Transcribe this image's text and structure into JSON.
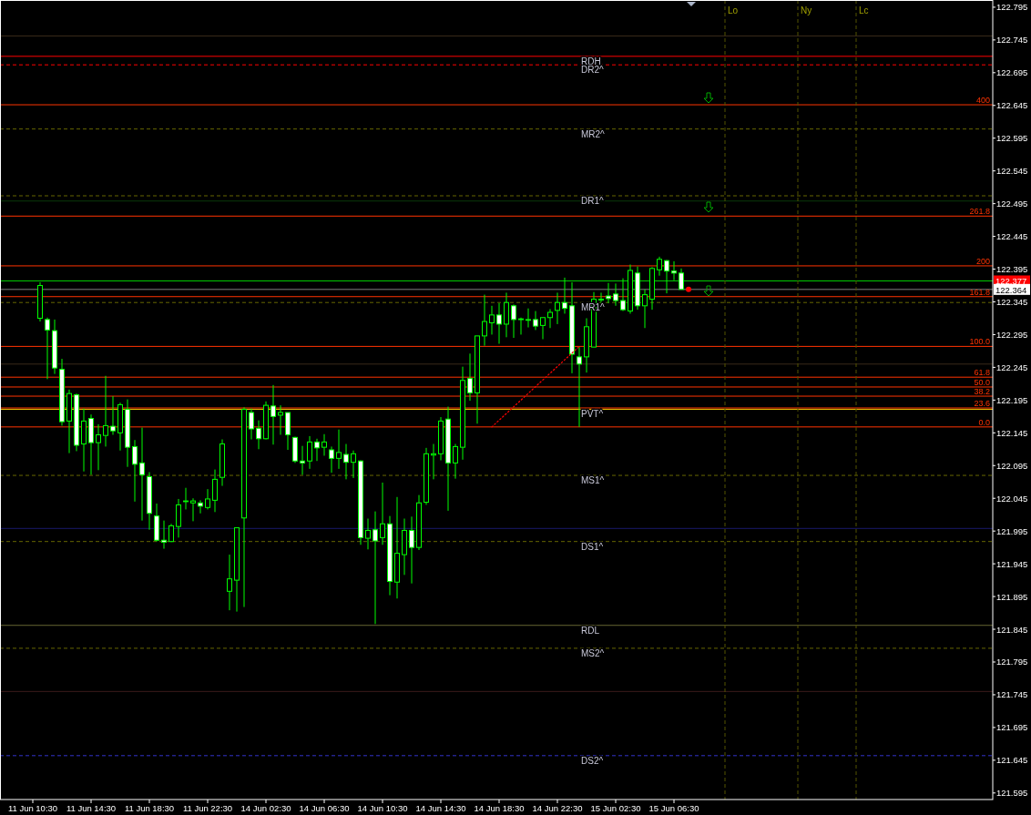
{
  "chart_data": {
    "type": "candlestick",
    "categories": [
      "11 Jun 10:30",
      null,
      null,
      null,
      null,
      null,
      null,
      null,
      "11 Jun 14:30",
      null,
      null,
      null,
      null,
      null,
      null,
      null,
      "11 Jun 18:30",
      null,
      null,
      null,
      null,
      null,
      null,
      null,
      "11 Jun 22:30",
      null,
      null,
      null,
      null,
      null,
      null,
      null,
      "14 Jun 02:30",
      null,
      null,
      null,
      null,
      null,
      null,
      null,
      "14 Jun 06:30",
      null,
      null,
      null,
      null,
      null,
      null,
      null,
      "14 Jun 10:30",
      null,
      null,
      null,
      null,
      null,
      null,
      null,
      "14 Jun 14:30",
      null,
      null,
      null,
      null,
      null,
      null,
      null,
      "14 Jun 18:30",
      null,
      null,
      null,
      null,
      null,
      null,
      null,
      "14 Jun 22:30",
      null,
      null,
      null,
      null,
      null,
      null,
      null,
      "15 Jun 02:30",
      null,
      null,
      null,
      null,
      null,
      null,
      null,
      "15 Jun 06:30",
      null,
      null,
      null,
      null,
      null,
      null,
      null,
      null,
      null,
      null,
      null,
      null,
      null,
      null,
      null,
      null,
      null,
      null,
      null,
      null,
      null,
      null,
      null,
      null,
      null,
      null,
      null,
      null,
      null,
      null,
      null,
      null,
      null,
      null,
      null,
      null,
      null,
      null,
      null,
      null,
      null,
      null,
      null
    ],
    "ylim": [
      121.585,
      122.806
    ],
    "yticks": [
      121.595,
      121.645,
      121.695,
      121.745,
      121.795,
      121.845,
      121.895,
      121.945,
      121.995,
      122.045,
      122.095,
      122.145,
      122.195,
      122.245,
      122.295,
      122.345,
      122.395,
      122.445,
      122.495,
      122.545,
      122.595,
      122.645,
      122.695,
      122.745,
      122.795
    ],
    "series": [
      {
        "type": "candlestick",
        "color": "#00ff00",
        "ohlc": [
          null,
          [
            122.32,
            122.375,
            122.315,
            122.37
          ],
          [
            122.318,
            122.321,
            122.227,
            122.302
          ],
          [
            122.301,
            122.318,
            122.235,
            122.244
          ],
          [
            122.242,
            122.258,
            122.156,
            122.162
          ],
          [
            122.163,
            122.211,
            122.114,
            122.205
          ],
          [
            122.203,
            122.205,
            122.117,
            122.126
          ],
          [
            122.128,
            122.182,
            122.086,
            122.163
          ],
          [
            122.167,
            122.173,
            122.081,
            122.13
          ],
          [
            122.13,
            122.158,
            122.088,
            122.142
          ],
          [
            122.141,
            122.232,
            122.124,
            122.156
          ],
          [
            122.155,
            122.201,
            122.142,
            122.148
          ],
          [
            122.145,
            122.191,
            122.118,
            122.188
          ],
          [
            122.181,
            122.196,
            122.093,
            122.123
          ],
          [
            122.124,
            122.134,
            122.04,
            122.097
          ],
          [
            122.099,
            122.153,
            122.011,
            122.081
          ],
          [
            122.078,
            122.085,
            121.997,
            122.022
          ],
          [
            122.018,
            122.037,
            121.979,
            121.981
          ],
          [
            121.981,
            122.011,
            121.968,
            121.978
          ],
          [
            121.979,
            122.006,
            121.978,
            122.003
          ],
          [
            122.002,
            122.044,
            121.985,
            122.035
          ],
          [
            122.041,
            122.061,
            122.028,
            122.041
          ],
          [
            122.038,
            122.045,
            122.01,
            122.041
          ],
          [
            122.038,
            122.042,
            122.022,
            122.033
          ],
          [
            122.031,
            122.059,
            122.028,
            122.044
          ],
          [
            122.042,
            122.089,
            122.024,
            122.074
          ],
          [
            122.077,
            122.135,
            122.064,
            122.128
          ],
          [
            121.903,
            121.959,
            121.874,
            121.922
          ],
          [
            121.92,
            122.0,
            121.872,
            122.0
          ],
          [
            122.015,
            122.184,
            121.879,
            122.181
          ],
          [
            122.176,
            122.182,
            122.135,
            122.151
          ],
          [
            122.152,
            122.164,
            122.12,
            122.136
          ],
          [
            122.136,
            122.193,
            122.135,
            122.187
          ],
          [
            122.186,
            122.218,
            122.127,
            122.17
          ],
          [
            122.172,
            122.187,
            122.142,
            122.176
          ],
          [
            122.176,
            122.176,
            122.119,
            122.142
          ],
          [
            122.138,
            122.139,
            122.099,
            122.102
          ],
          [
            122.102,
            122.125,
            122.081,
            122.099
          ],
          [
            122.102,
            122.14,
            122.09,
            122.131
          ],
          [
            122.131,
            122.136,
            122.102,
            122.122
          ],
          [
            122.123,
            122.143,
            122.11,
            122.131
          ],
          [
            122.119,
            122.124,
            122.084,
            122.106
          ],
          [
            122.106,
            122.15,
            122.09,
            122.115
          ],
          [
            122.112,
            122.128,
            122.074,
            122.1
          ],
          [
            122.1,
            122.118,
            122.076,
            122.113
          ],
          [
            122.102,
            122.103,
            121.974,
            121.985
          ],
          [
            121.984,
            122.014,
            121.967,
            121.996
          ],
          [
            121.997,
            122.025,
            121.853,
            121.98
          ],
          [
            121.985,
            122.069,
            121.974,
            122.006
          ],
          [
            122.006,
            122.018,
            121.897,
            121.918
          ],
          [
            121.917,
            122.047,
            121.892,
            121.961
          ],
          [
            121.959,
            122.014,
            121.928,
            121.996
          ],
          [
            121.996,
            122.017,
            121.915,
            121.97
          ],
          [
            121.97,
            122.05,
            121.966,
            122.038
          ],
          [
            122.039,
            122.122,
            122.035,
            122.113
          ],
          [
            122.111,
            122.128,
            122.074,
            122.113
          ],
          [
            122.113,
            122.169,
            122.103,
            122.163
          ],
          [
            122.166,
            122.185,
            122.026,
            122.099
          ],
          [
            122.099,
            122.128,
            122.075,
            122.124
          ],
          [
            122.123,
            122.246,
            122.104,
            122.225
          ],
          [
            122.228,
            122.266,
            122.194,
            122.206
          ],
          [
            122.206,
            122.293,
            122.159,
            122.293
          ],
          [
            122.293,
            122.356,
            122.278,
            122.315
          ],
          [
            122.313,
            122.339,
            122.295,
            122.325
          ],
          [
            122.325,
            122.343,
            122.281,
            122.311
          ],
          [
            122.311,
            122.359,
            122.291,
            122.344
          ],
          [
            122.339,
            122.341,
            122.29,
            122.318
          ],
          [
            122.319,
            122.321,
            122.295,
            122.319
          ],
          [
            122.318,
            122.335,
            122.306,
            122.318
          ],
          [
            122.318,
            122.331,
            122.302,
            122.308
          ],
          [
            122.309,
            122.321,
            122.288,
            122.321
          ],
          [
            122.321,
            122.334,
            122.305,
            122.329
          ],
          [
            122.332,
            122.359,
            122.311,
            122.344
          ],
          [
            122.344,
            122.382,
            122.327,
            122.335
          ],
          [
            122.339,
            122.375,
            122.236,
            122.265
          ],
          [
            122.261,
            122.276,
            122.154,
            122.25
          ],
          [
            122.261,
            122.32,
            122.237,
            122.307
          ],
          [
            122.276,
            122.36,
            122.276,
            122.349
          ],
          [
            122.349,
            122.359,
            122.343,
            122.349
          ],
          [
            122.354,
            122.374,
            122.343,
            122.35
          ],
          [
            122.357,
            122.373,
            122.339,
            122.347
          ],
          [
            122.347,
            122.381,
            122.331,
            122.333
          ],
          [
            122.331,
            122.402,
            122.327,
            122.393
          ],
          [
            122.389,
            122.399,
            122.333,
            122.339
          ],
          [
            122.339,
            122.364,
            122.305,
            122.356
          ],
          [
            122.349,
            122.398,
            122.333,
            122.396
          ],
          [
            122.394,
            122.414,
            122.385,
            122.41
          ],
          [
            122.408,
            122.409,
            122.358,
            122.392
          ],
          [
            122.392,
            122.407,
            122.378,
            122.389
          ],
          [
            122.389,
            122.396,
            122.364,
            122.364
          ],
          null,
          null,
          null,
          null,
          null,
          null,
          null,
          null,
          null,
          null,
          null,
          null,
          null,
          null,
          null,
          null,
          null,
          null,
          null,
          null,
          null,
          null,
          null,
          null,
          null,
          null,
          null,
          null,
          null,
          null,
          null,
          null,
          null,
          null,
          null,
          null,
          null,
          null,
          null,
          null,
          null,
          null
        ]
      },
      {
        "type": "line",
        "color": "#ff0000",
        "line_style": "dotted",
        "values": [
          null,
          null,
          null,
          null,
          null,
          null,
          null,
          null,
          null,
          null,
          null,
          null,
          null,
          null,
          null,
          null,
          null,
          null,
          null,
          null,
          null,
          null,
          null,
          null,
          null,
          null,
          null,
          null,
          null,
          null,
          null,
          null,
          null,
          null,
          null,
          null,
          null,
          null,
          null,
          null,
          null,
          null,
          null,
          null,
          null,
          null,
          null,
          null,
          null,
          null,
          null,
          null,
          null,
          null,
          null,
          null,
          null,
          null,
          null,
          null,
          null,
          null,
          null,
          122.154,
          null,
          null,
          null,
          null,
          null,
          null,
          null,
          null,
          null,
          null,
          null,
          122.277,
          null,
          null,
          null,
          null,
          null,
          null,
          null,
          null,
          null,
          null,
          null,
          null,
          null,
          null,
          null,
          null,
          null,
          null,
          null,
          null,
          null,
          null,
          null,
          null,
          null,
          null,
          null,
          null,
          null,
          null,
          null,
          null,
          null,
          null,
          null,
          null,
          null,
          null,
          null,
          null,
          null,
          null,
          null,
          null,
          null,
          null,
          null,
          null,
          null,
          null,
          null,
          null,
          null,
          null,
          null,
          null
        ]
      },
      {
        "type": "scatter",
        "color": "#ff0000",
        "marker": "circle",
        "values": [
          null,
          null,
          null,
          null,
          null,
          null,
          null,
          null,
          null,
          null,
          null,
          null,
          null,
          null,
          null,
          null,
          null,
          null,
          null,
          null,
          null,
          null,
          null,
          null,
          null,
          null,
          null,
          null,
          null,
          null,
          null,
          null,
          null,
          null,
          null,
          null,
          null,
          null,
          null,
          null,
          null,
          null,
          null,
          null,
          null,
          null,
          null,
          null,
          null,
          null,
          null,
          null,
          null,
          null,
          null,
          null,
          null,
          null,
          null,
          null,
          null,
          null,
          null,
          null,
          null,
          null,
          null,
          null,
          null,
          null,
          null,
          null,
          null,
          null,
          null,
          null,
          null,
          null,
          null,
          null,
          null,
          null,
          null,
          null,
          null,
          null,
          null,
          null,
          null,
          null,
          122.364,
          null,
          null,
          null,
          null,
          null,
          null,
          null,
          null,
          null,
          null,
          null,
          null,
          null,
          null,
          null,
          null,
          null,
          null,
          null,
          null,
          null,
          null,
          null,
          null,
          null,
          null,
          null,
          null,
          null,
          null,
          null,
          null,
          null,
          null,
          null,
          null,
          null,
          null,
          null,
          null,
          null
        ]
      }
    ],
    "ref_lines": [
      {
        "axis": "y",
        "value": 122.751,
        "color": "#3a2a1a"
      },
      {
        "axis": "y",
        "value": 122.72,
        "label": "RDH",
        "color": "#ff0000",
        "line_style": "solid"
      },
      {
        "axis": "y",
        "value": 122.707,
        "label": "DR2^",
        "color": "#ff0000",
        "line_style": "dashed"
      },
      {
        "axis": "y",
        "value": 122.646,
        "color": "#ff3300"
      },
      {
        "axis": "y",
        "value": 122.609,
        "label": "MR2^",
        "color": "#666600",
        "line_style": "dashed"
      },
      {
        "axis": "y",
        "value": 122.507,
        "label": "DR1^",
        "color": "#666600",
        "line_style": "dashed"
      },
      {
        "axis": "y",
        "value": 122.499,
        "color": "#0a3a0a"
      },
      {
        "axis": "y",
        "value": 122.476,
        "color": "#ff3300"
      },
      {
        "axis": "y",
        "value": 122.4,
        "color": "#ff3300"
      },
      {
        "axis": "y",
        "value": 122.377,
        "label": "122.377",
        "color": "#00cc00"
      },
      {
        "axis": "y",
        "value": 122.364,
        "label": "122.364",
        "color": "#808080"
      },
      {
        "axis": "y",
        "value": 122.353,
        "color": "#ff3300"
      },
      {
        "axis": "y",
        "value": 122.344,
        "label": "MR1^",
        "color": "#666600",
        "line_style": "dashed"
      },
      {
        "axis": "y",
        "value": 122.277,
        "color": "#ff3300"
      },
      {
        "axis": "y",
        "value": 122.25,
        "color": "#3a2a1a"
      },
      {
        "axis": "y",
        "value": 122.23,
        "color": "#ff3300"
      },
      {
        "axis": "y",
        "value": 122.215,
        "color": "#ff3300"
      },
      {
        "axis": "y",
        "value": 122.201,
        "color": "#ff3300"
      },
      {
        "axis": "y",
        "value": 122.183,
        "color": "#ff3300"
      },
      {
        "axis": "y",
        "value": 122.181,
        "label": "PVT^",
        "color": "#ffcc00",
        "line_style": "solid"
      },
      {
        "axis": "y",
        "value": 122.154,
        "color": "#ff3300"
      },
      {
        "axis": "y",
        "value": 122.08,
        "label": "MS1^",
        "color": "#666600",
        "line_style": "dashed"
      },
      {
        "axis": "y",
        "value": 121.999,
        "color": "#1a1a6a"
      },
      {
        "axis": "y",
        "value": 121.979,
        "label": "DS1^",
        "color": "#666600",
        "line_style": "dashed"
      },
      {
        "axis": "y",
        "value": 121.851,
        "label": "RDL",
        "color": "#666633",
        "line_style": "solid"
      },
      {
        "axis": "y",
        "value": 121.816,
        "label": "MS2^",
        "color": "#666600",
        "line_style": "dashed"
      },
      {
        "axis": "y",
        "value": 121.75,
        "color": "#3a1a1a"
      },
      {
        "axis": "y",
        "value": 121.652,
        "label": "DS2^",
        "color": "#3333cc",
        "line_style": "dashed"
      }
    ],
    "annotations": [
      {
        "text": "400",
        "y": 122.646
      },
      {
        "text": "261.8",
        "y": 122.476
      },
      {
        "text": "200",
        "y": 122.4
      },
      {
        "text": "161.8",
        "y": 122.353
      },
      {
        "text": "100.0",
        "y": 122.277
      },
      {
        "text": "61.8",
        "y": 122.23
      },
      {
        "text": "50.0",
        "y": 122.215
      },
      {
        "text": "38.2",
        "y": 122.201
      },
      {
        "text": "23.6",
        "y": 122.183
      },
      {
        "text": "0.0",
        "y": 122.154
      },
      "Lo",
      "Ny",
      "Lc"
    ]
  }
}
